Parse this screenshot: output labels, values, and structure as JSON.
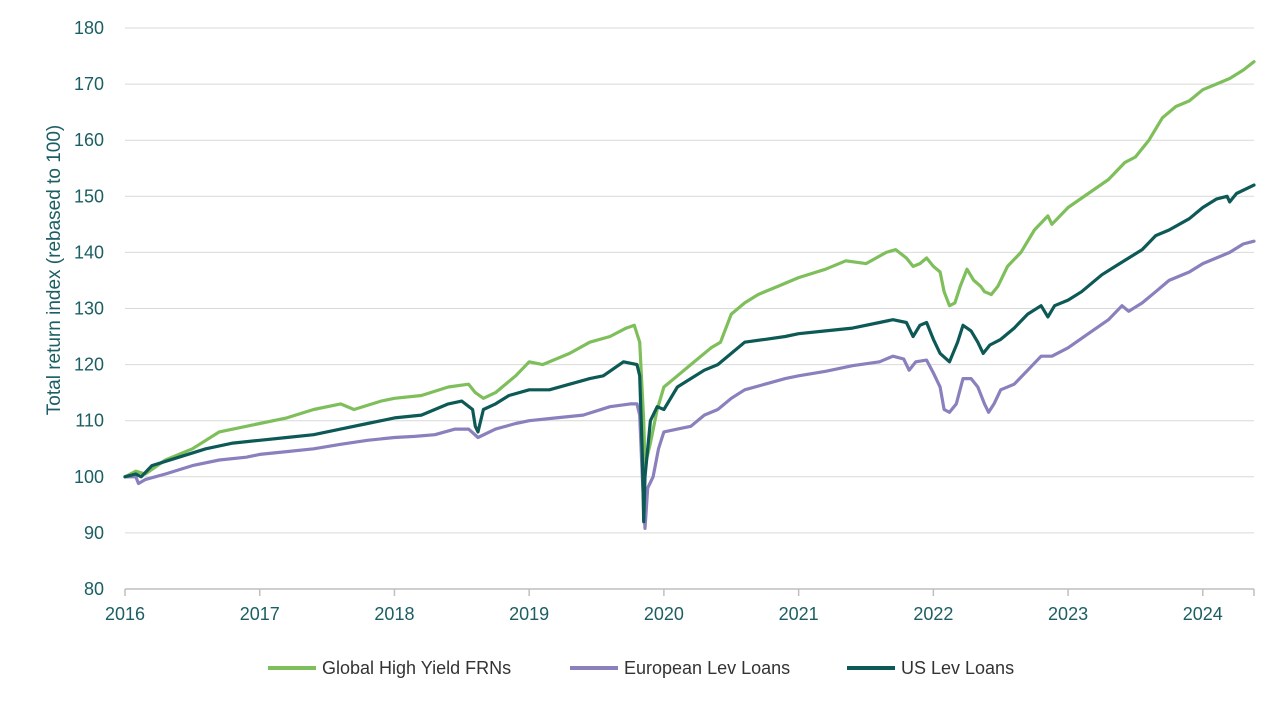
{
  "chart_data": {
    "type": "line",
    "ylabel": "Total return index (rebased to 100)",
    "xlabel": "",
    "ylim": [
      80,
      180
    ],
    "xlim": [
      2016.0,
      2024.38
    ],
    "yticks": [
      80,
      90,
      100,
      110,
      120,
      130,
      140,
      150,
      160,
      170,
      180
    ],
    "xticks": [
      2016,
      2017,
      2018,
      2019,
      2020,
      2021,
      2022,
      2023,
      2024
    ],
    "grid": "horizontal",
    "legend": "bottom",
    "series": [
      {
        "name": "Global High Yield FRNs",
        "color": "#7ebf5b",
        "points": [
          [
            2016.0,
            100
          ],
          [
            2016.08,
            101
          ],
          [
            2016.15,
            100.5
          ],
          [
            2016.3,
            103
          ],
          [
            2016.5,
            105
          ],
          [
            2016.7,
            108
          ],
          [
            2016.9,
            109
          ],
          [
            2017.0,
            109.5
          ],
          [
            2017.2,
            110.5
          ],
          [
            2017.4,
            112
          ],
          [
            2017.6,
            113
          ],
          [
            2017.7,
            112
          ],
          [
            2017.9,
            113.5
          ],
          [
            2018.0,
            114
          ],
          [
            2018.2,
            114.5
          ],
          [
            2018.4,
            116
          ],
          [
            2018.55,
            116.5
          ],
          [
            2018.6,
            115
          ],
          [
            2018.66,
            114
          ],
          [
            2018.75,
            115
          ],
          [
            2018.9,
            118
          ],
          [
            2019.0,
            120.5
          ],
          [
            2019.1,
            120
          ],
          [
            2019.3,
            122
          ],
          [
            2019.45,
            124
          ],
          [
            2019.6,
            125
          ],
          [
            2019.72,
            126.5
          ],
          [
            2019.78,
            127
          ],
          [
            2019.82,
            124
          ],
          [
            2019.85,
            110
          ],
          [
            2019.86,
            102
          ],
          [
            2019.9,
            106
          ],
          [
            2019.95,
            112
          ],
          [
            2020.0,
            116
          ],
          [
            2020.1,
            118
          ],
          [
            2020.2,
            120
          ],
          [
            2020.35,
            123
          ],
          [
            2020.42,
            124
          ],
          [
            2020.5,
            129
          ],
          [
            2020.6,
            131
          ],
          [
            2020.7,
            132.5
          ],
          [
            2020.85,
            134
          ],
          [
            2021.0,
            135.5
          ],
          [
            2021.2,
            137
          ],
          [
            2021.35,
            138.5
          ],
          [
            2021.5,
            138
          ],
          [
            2021.65,
            140
          ],
          [
            2021.72,
            140.5
          ],
          [
            2021.8,
            139
          ],
          [
            2021.85,
            137.5
          ],
          [
            2021.9,
            138
          ],
          [
            2021.95,
            139
          ],
          [
            2022.0,
            137.5
          ],
          [
            2022.05,
            136.5
          ],
          [
            2022.08,
            133
          ],
          [
            2022.12,
            130.5
          ],
          [
            2022.16,
            131
          ],
          [
            2022.2,
            134
          ],
          [
            2022.25,
            137
          ],
          [
            2022.3,
            135
          ],
          [
            2022.35,
            134
          ],
          [
            2022.38,
            133
          ],
          [
            2022.43,
            132.5
          ],
          [
            2022.48,
            134
          ],
          [
            2022.55,
            137.5
          ],
          [
            2022.65,
            140
          ],
          [
            2022.75,
            144
          ],
          [
            2022.85,
            146.5
          ],
          [
            2022.88,
            145
          ],
          [
            2023.0,
            148
          ],
          [
            2023.15,
            150.5
          ],
          [
            2023.3,
            153
          ],
          [
            2023.42,
            156
          ],
          [
            2023.5,
            157
          ],
          [
            2023.6,
            160
          ],
          [
            2023.7,
            164
          ],
          [
            2023.8,
            166
          ],
          [
            2023.9,
            167
          ],
          [
            2024.0,
            169
          ],
          [
            2024.1,
            170
          ],
          [
            2024.2,
            171
          ],
          [
            2024.3,
            172.5
          ],
          [
            2024.38,
            174
          ]
        ]
      },
      {
        "name": "European Lev Loans",
        "color": "#8a80bd",
        "points": [
          [
            2016.0,
            100
          ],
          [
            2016.08,
            100
          ],
          [
            2016.1,
            98.8
          ],
          [
            2016.15,
            99.5
          ],
          [
            2016.3,
            100.5
          ],
          [
            2016.5,
            102
          ],
          [
            2016.7,
            103
          ],
          [
            2016.9,
            103.5
          ],
          [
            2017.0,
            104
          ],
          [
            2017.2,
            104.5
          ],
          [
            2017.4,
            105
          ],
          [
            2017.6,
            105.8
          ],
          [
            2017.8,
            106.5
          ],
          [
            2018.0,
            107
          ],
          [
            2018.15,
            107.2
          ],
          [
            2018.3,
            107.5
          ],
          [
            2018.45,
            108.5
          ],
          [
            2018.55,
            108.5
          ],
          [
            2018.62,
            107
          ],
          [
            2018.75,
            108.5
          ],
          [
            2018.9,
            109.5
          ],
          [
            2019.0,
            110
          ],
          [
            2019.2,
            110.5
          ],
          [
            2019.4,
            111
          ],
          [
            2019.6,
            112.5
          ],
          [
            2019.75,
            113
          ],
          [
            2019.8,
            113
          ],
          [
            2019.82,
            111
          ],
          [
            2019.84,
            100
          ],
          [
            2019.86,
            90.8
          ],
          [
            2019.88,
            98
          ],
          [
            2019.92,
            100
          ],
          [
            2019.96,
            105
          ],
          [
            2020.0,
            108
          ],
          [
            2020.1,
            108.5
          ],
          [
            2020.2,
            109
          ],
          [
            2020.3,
            111
          ],
          [
            2020.4,
            112
          ],
          [
            2020.5,
            114
          ],
          [
            2020.6,
            115.5
          ],
          [
            2020.75,
            116.5
          ],
          [
            2020.9,
            117.5
          ],
          [
            2021.0,
            118
          ],
          [
            2021.2,
            118.8
          ],
          [
            2021.4,
            119.8
          ],
          [
            2021.6,
            120.5
          ],
          [
            2021.7,
            121.5
          ],
          [
            2021.78,
            121
          ],
          [
            2021.82,
            119
          ],
          [
            2021.87,
            120.5
          ],
          [
            2021.95,
            120.8
          ],
          [
            2022.0,
            118.5
          ],
          [
            2022.05,
            116
          ],
          [
            2022.08,
            112
          ],
          [
            2022.12,
            111.5
          ],
          [
            2022.17,
            113
          ],
          [
            2022.22,
            117.5
          ],
          [
            2022.28,
            117.5
          ],
          [
            2022.33,
            116
          ],
          [
            2022.38,
            113
          ],
          [
            2022.41,
            111.5
          ],
          [
            2022.45,
            113
          ],
          [
            2022.5,
            115.5
          ],
          [
            2022.6,
            116.5
          ],
          [
            2022.7,
            119
          ],
          [
            2022.8,
            121.5
          ],
          [
            2022.88,
            121.5
          ],
          [
            2023.0,
            123
          ],
          [
            2023.15,
            125.5
          ],
          [
            2023.3,
            128
          ],
          [
            2023.4,
            130.5
          ],
          [
            2023.45,
            129.5
          ],
          [
            2023.55,
            131
          ],
          [
            2023.65,
            133
          ],
          [
            2023.75,
            135
          ],
          [
            2023.9,
            136.5
          ],
          [
            2024.0,
            138
          ],
          [
            2024.1,
            139
          ],
          [
            2024.2,
            140
          ],
          [
            2024.3,
            141.5
          ],
          [
            2024.38,
            142
          ]
        ]
      },
      {
        "name": "US Lev Loans",
        "color": "#0d5956",
        "points": [
          [
            2016.0,
            100
          ],
          [
            2016.08,
            100.5
          ],
          [
            2016.12,
            100
          ],
          [
            2016.2,
            102
          ],
          [
            2016.4,
            103.5
          ],
          [
            2016.6,
            105
          ],
          [
            2016.8,
            106
          ],
          [
            2017.0,
            106.5
          ],
          [
            2017.2,
            107
          ],
          [
            2017.4,
            107.5
          ],
          [
            2017.6,
            108.5
          ],
          [
            2017.8,
            109.5
          ],
          [
            2018.0,
            110.5
          ],
          [
            2018.2,
            111
          ],
          [
            2018.4,
            113
          ],
          [
            2018.5,
            113.5
          ],
          [
            2018.58,
            112
          ],
          [
            2018.6,
            109
          ],
          [
            2018.62,
            108
          ],
          [
            2018.66,
            112
          ],
          [
            2018.75,
            113
          ],
          [
            2018.85,
            114.5
          ],
          [
            2019.0,
            115.5
          ],
          [
            2019.15,
            115.5
          ],
          [
            2019.3,
            116.5
          ],
          [
            2019.45,
            117.5
          ],
          [
            2019.55,
            118
          ],
          [
            2019.7,
            120.5
          ],
          [
            2019.8,
            120
          ],
          [
            2019.82,
            118
          ],
          [
            2019.84,
            104
          ],
          [
            2019.85,
            92
          ],
          [
            2019.86,
            100
          ],
          [
            2019.9,
            110
          ],
          [
            2019.95,
            112.5
          ],
          [
            2020.0,
            112
          ],
          [
            2020.1,
            116
          ],
          [
            2020.2,
            117.5
          ],
          [
            2020.3,
            119
          ],
          [
            2020.4,
            120
          ],
          [
            2020.5,
            122
          ],
          [
            2020.6,
            124
          ],
          [
            2020.75,
            124.5
          ],
          [
            2020.9,
            125
          ],
          [
            2021.0,
            125.5
          ],
          [
            2021.2,
            126
          ],
          [
            2021.4,
            126.5
          ],
          [
            2021.6,
            127.5
          ],
          [
            2021.7,
            128
          ],
          [
            2021.8,
            127.5
          ],
          [
            2021.85,
            125
          ],
          [
            2021.9,
            127
          ],
          [
            2021.95,
            127.5
          ],
          [
            2022.0,
            124.5
          ],
          [
            2022.05,
            122
          ],
          [
            2022.12,
            120.5
          ],
          [
            2022.18,
            124
          ],
          [
            2022.22,
            127
          ],
          [
            2022.28,
            126
          ],
          [
            2022.33,
            124
          ],
          [
            2022.37,
            122
          ],
          [
            2022.42,
            123.5
          ],
          [
            2022.5,
            124.5
          ],
          [
            2022.6,
            126.5
          ],
          [
            2022.7,
            129
          ],
          [
            2022.8,
            130.5
          ],
          [
            2022.85,
            128.5
          ],
          [
            2022.9,
            130.5
          ],
          [
            2023.0,
            131.5
          ],
          [
            2023.1,
            133
          ],
          [
            2023.25,
            136
          ],
          [
            2023.35,
            137.5
          ],
          [
            2023.45,
            139
          ],
          [
            2023.55,
            140.5
          ],
          [
            2023.65,
            143
          ],
          [
            2023.75,
            144
          ],
          [
            2023.9,
            146
          ],
          [
            2024.0,
            148
          ],
          [
            2024.1,
            149.5
          ],
          [
            2024.18,
            150
          ],
          [
            2024.2,
            149
          ],
          [
            2024.25,
            150.5
          ],
          [
            2024.38,
            152
          ]
        ]
      }
    ]
  }
}
